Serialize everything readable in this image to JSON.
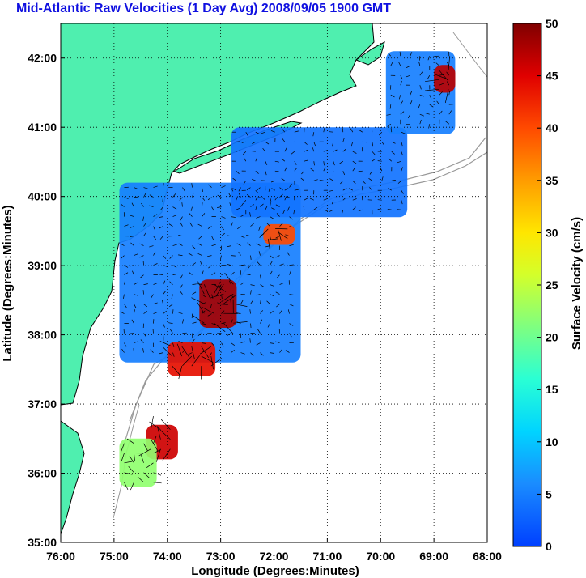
{
  "title": "Mid-Atlantic Raw Velocities (1 Day Avg) 2008/09/05 1900 GMT",
  "colors": {
    "land": "#4fefaf",
    "title": "#1010e0",
    "coastline": "#000000",
    "bathymetry": "#999999"
  },
  "map": {
    "xlabel": "Longitude (Degrees:Minutes)",
    "ylabel": "Latitude (Degrees:Minutes)",
    "lon_range": [
      -76,
      -68
    ],
    "lat_range": [
      35,
      42.5
    ],
    "lon_ticks": [
      {
        "value": -76,
        "label": "76:00"
      },
      {
        "value": -75,
        "label": "75:00"
      },
      {
        "value": -74,
        "label": "74:00"
      },
      {
        "value": -73,
        "label": "73:00"
      },
      {
        "value": -72,
        "label": "72:00"
      },
      {
        "value": -71,
        "label": "71:00"
      },
      {
        "value": -70,
        "label": "70:00"
      },
      {
        "value": -69,
        "label": "69:00"
      },
      {
        "value": -68,
        "label": "68:00"
      }
    ],
    "lat_ticks": [
      {
        "value": 35,
        "label": "35:00"
      },
      {
        "value": 36,
        "label": "36:00"
      },
      {
        "value": 37,
        "label": "37:00"
      },
      {
        "value": 38,
        "label": "38:00"
      },
      {
        "value": 39,
        "label": "39:00"
      },
      {
        "value": 40,
        "label": "40:00"
      },
      {
        "value": 41,
        "label": "41:00"
      },
      {
        "value": 42,
        "label": "42:00"
      }
    ],
    "grid": "dotted"
  },
  "colorbar": {
    "label": "Surface Velocity (cm/s)",
    "range": [
      0,
      50
    ],
    "ticks": [
      {
        "value": 0,
        "label": "0"
      },
      {
        "value": 5,
        "label": "5"
      },
      {
        "value": 10,
        "label": "10"
      },
      {
        "value": 15,
        "label": "15"
      },
      {
        "value": 20,
        "label": "20"
      },
      {
        "value": 25,
        "label": "25"
      },
      {
        "value": 30,
        "label": "30"
      },
      {
        "value": 35,
        "label": "35"
      },
      {
        "value": 40,
        "label": "40"
      },
      {
        "value": 45,
        "label": "45"
      },
      {
        "value": 50,
        "label": "50"
      }
    ],
    "colormap": "jet"
  },
  "chart_data": {
    "type": "heatmap",
    "colormap": "jet",
    "value_range": [
      0,
      50
    ],
    "units": "cm/s",
    "speed_regions": [
      {
        "lon": [
          -74.9,
          -71.5
        ],
        "lat": [
          37.6,
          40.2
        ],
        "speed": 5
      },
      {
        "lon": [
          -72.8,
          -69.5
        ],
        "lat": [
          39.7,
          41.0
        ],
        "speed": 4
      },
      {
        "lon": [
          -69.9,
          -68.6
        ],
        "lat": [
          40.9,
          42.1
        ],
        "speed": 5
      },
      {
        "lon": [
          -73.4,
          -72.7
        ],
        "lat": [
          38.1,
          38.8
        ],
        "speed": 48
      },
      {
        "lon": [
          -74.0,
          -73.1
        ],
        "lat": [
          37.4,
          37.9
        ],
        "speed": 44
      },
      {
        "lon": [
          -72.2,
          -71.6
        ],
        "lat": [
          39.3,
          39.6
        ],
        "speed": 40
      },
      {
        "lon": [
          -69.0,
          -68.6
        ],
        "lat": [
          41.5,
          41.9
        ],
        "speed": 47
      },
      {
        "lon": [
          -74.4,
          -73.8
        ],
        "lat": [
          36.2,
          36.7
        ],
        "speed": 46
      },
      {
        "lon": [
          -74.9,
          -74.2
        ],
        "lat": [
          35.8,
          36.5
        ],
        "speed": 22
      }
    ]
  }
}
